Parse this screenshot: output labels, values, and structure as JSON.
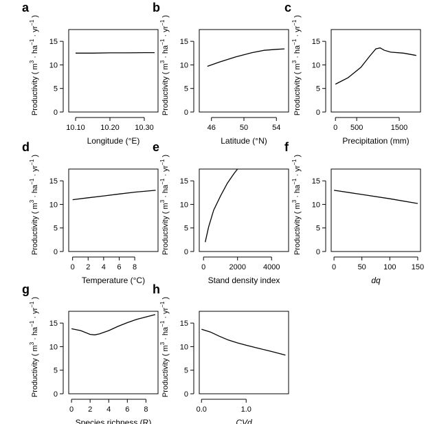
{
  "y_label": {
    "text": "Productivity",
    "unit_open": "( m",
    "unit_exp1": "3",
    "unit_ha": " · ha",
    "unit_exp2": "−1",
    "unit_yr": " · yr",
    "unit_exp3": "−1",
    "unit_close": " )"
  },
  "chart_data": [
    {
      "type": "line",
      "panel": "a",
      "xlabel": "Longitude (°E)",
      "xlabel_italic": false,
      "xlim": [
        10.08,
        10.34
      ],
      "xticks": [
        10.1,
        10.2,
        10.3
      ],
      "xtick_labels": [
        "10.10",
        "10.20",
        "10.30"
      ],
      "ylim": [
        0,
        17.5
      ],
      "yticks": [
        0,
        5,
        10,
        15
      ],
      "x": [
        10.1,
        10.15,
        10.2,
        10.25,
        10.3,
        10.33
      ],
      "y": [
        12.5,
        12.5,
        12.55,
        12.55,
        12.6,
        12.6
      ]
    },
    {
      "type": "line",
      "panel": "b",
      "xlabel": "Latitude (°N)",
      "xlabel_italic": false,
      "xlim": [
        44.5,
        55.5
      ],
      "xticks": [
        46,
        50,
        54
      ],
      "xtick_labels": [
        "46",
        "50",
        "54"
      ],
      "ylim": [
        0,
        17.5
      ],
      "yticks": [
        0,
        5,
        10,
        15
      ],
      "x": [
        45.5,
        47,
        49,
        51,
        52.5,
        54,
        55
      ],
      "y": [
        9.7,
        10.6,
        11.7,
        12.6,
        13.1,
        13.3,
        13.4
      ]
    },
    {
      "type": "line",
      "panel": "c",
      "xlabel": "Precipitation (mm)",
      "xlabel_italic": false,
      "xlim": [
        -100,
        2000
      ],
      "xticks": [
        0,
        500,
        1500
      ],
      "xtick_labels": [
        "0",
        "500",
        "1500"
      ],
      "ylim": [
        0,
        17.5
      ],
      "yticks": [
        0,
        5,
        10,
        15
      ],
      "x": [
        0,
        300,
        600,
        800,
        950,
        1050,
        1150,
        1300,
        1600,
        1900
      ],
      "y": [
        5.9,
        7.3,
        9.5,
        11.8,
        13.4,
        13.6,
        13.1,
        12.7,
        12.5,
        12.0
      ]
    },
    {
      "type": "line",
      "panel": "d",
      "xlabel": "Temperature (°C)",
      "xlabel_italic": false,
      "xlim": [
        -0.5,
        11
      ],
      "xticks": [
        0,
        2,
        4,
        6,
        8
      ],
      "xtick_labels": [
        "0",
        "2",
        "4",
        "6",
        "8"
      ],
      "ylim": [
        0,
        17.5
      ],
      "yticks": [
        0,
        5,
        10,
        15
      ],
      "x": [
        0,
        2,
        4,
        6,
        8,
        10.7
      ],
      "y": [
        11.0,
        11.4,
        11.8,
        12.2,
        12.6,
        13.0
      ]
    },
    {
      "type": "line",
      "panel": "e",
      "xlabel": "Stand density index",
      "xlabel_italic": false,
      "xlim": [
        -250,
        5000
      ],
      "xticks": [
        0,
        2000,
        4000
      ],
      "xtick_labels": [
        "0",
        "2000",
        "4000"
      ],
      "ylim": [
        0,
        17.5
      ],
      "yticks": [
        0,
        5,
        10,
        15
      ],
      "x": [
        100,
        300,
        600,
        1000,
        1400,
        1800,
        2000
      ],
      "y": [
        2.0,
        5.2,
        8.8,
        11.8,
        14.5,
        16.6,
        17.5
      ]
    },
    {
      "type": "line",
      "panel": "f",
      "xlabel": "dq",
      "xlabel_italic": true,
      "xlim": [
        -5,
        155
      ],
      "xticks": [
        0,
        50,
        100,
        150
      ],
      "xtick_labels": [
        "0",
        "50",
        "100",
        "150"
      ],
      "ylim": [
        0,
        17.5
      ],
      "yticks": [
        0,
        5,
        10,
        15
      ],
      "x": [
        0,
        50,
        100,
        150
      ],
      "y": [
        13.0,
        12.1,
        11.2,
        10.2
      ]
    },
    {
      "type": "line",
      "panel": "g",
      "xlabel": "Species richness (R)",
      "xlabel_italic": false,
      "xlim": [
        -0.3,
        9.3
      ],
      "xticks": [
        0,
        2,
        4,
        6,
        8
      ],
      "xtick_labels": [
        "0",
        "2",
        "4",
        "6",
        "8"
      ],
      "ylim": [
        0,
        17.5
      ],
      "yticks": [
        0,
        5,
        10,
        15
      ],
      "x": [
        0,
        1,
        2,
        2.5,
        3,
        4,
        5,
        6,
        7,
        8,
        9
      ],
      "y": [
        13.8,
        13.4,
        12.6,
        12.5,
        12.7,
        13.4,
        14.3,
        15.1,
        15.8,
        16.3,
        16.8
      ]
    },
    {
      "type": "line",
      "panel": "h",
      "xlabel": "CVd",
      "xlabel_italic": true,
      "xlim": [
        -0.05,
        1.95
      ],
      "xticks": [
        0.0,
        1.0
      ],
      "xtick_labels": [
        "0.0",
        "1.0"
      ],
      "ylim": [
        0,
        17.5
      ],
      "yticks": [
        0,
        5,
        10,
        15
      ],
      "x": [
        0.0,
        0.2,
        0.4,
        0.6,
        0.8,
        1.0,
        1.3,
        1.6,
        1.88
      ],
      "y": [
        13.7,
        13.1,
        12.2,
        11.4,
        10.8,
        10.3,
        9.6,
        8.9,
        8.2
      ]
    }
  ]
}
